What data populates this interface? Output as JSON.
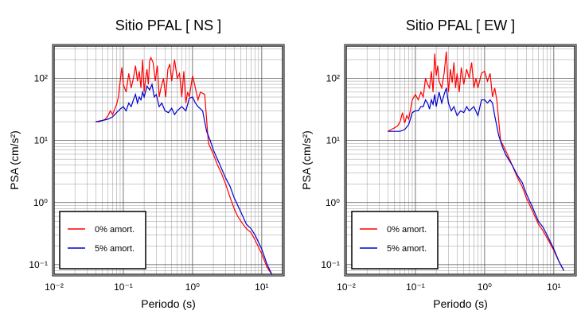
{
  "chart_data": [
    {
      "type": "line",
      "title": "Sitio PFAL [ NS ]",
      "xlabel": "Periodo (s)",
      "ylabel": "PSA (cm/s²)",
      "xscale": "log",
      "yscale": "log",
      "xlim": [
        0.01,
        20
      ],
      "ylim": [
        0.07,
        330
      ],
      "grid": true,
      "legend_position": "bottom-left",
      "x_ticks": [
        {
          "value": 0.01,
          "label": "10⁻²"
        },
        {
          "value": 0.1,
          "label": "10⁻¹"
        },
        {
          "value": 1,
          "label": "10⁰"
        },
        {
          "value": 10,
          "label": "10¹"
        }
      ],
      "y_ticks": [
        {
          "value": 0.1,
          "label": "10⁻¹"
        },
        {
          "value": 1,
          "label": "10⁰"
        },
        {
          "value": 10,
          "label": "10¹"
        },
        {
          "value": 100,
          "label": "10²"
        }
      ],
      "series": [
        {
          "name": "0% amort.",
          "color": "#ff0000",
          "x": [
            0.04,
            0.045,
            0.05,
            0.055,
            0.06,
            0.065,
            0.07,
            0.075,
            0.08,
            0.085,
            0.09,
            0.095,
            0.1,
            0.11,
            0.12,
            0.13,
            0.14,
            0.15,
            0.16,
            0.17,
            0.18,
            0.19,
            0.2,
            0.21,
            0.22,
            0.23,
            0.24,
            0.25,
            0.27,
            0.29,
            0.31,
            0.33,
            0.35,
            0.38,
            0.41,
            0.44,
            0.47,
            0.5,
            0.55,
            0.6,
            0.65,
            0.7,
            0.75,
            0.8,
            0.85,
            0.9,
            1.0,
            1.1,
            1.2,
            1.3,
            1.5,
            1.7,
            2.0,
            2.3,
            2.6,
            3.0,
            3.5,
            4.0,
            4.5,
            5,
            6,
            7,
            8,
            10,
            12,
            14
          ],
          "y": [
            20,
            20,
            21,
            22,
            25,
            30,
            26,
            32,
            38,
            50,
            90,
            150,
            80,
            60,
            120,
            70,
            100,
            160,
            90,
            130,
            70,
            200,
            60,
            100,
            140,
            80,
            190,
            215,
            180,
            90,
            160,
            50,
            70,
            100,
            50,
            140,
            170,
            90,
            200,
            100,
            120,
            50,
            130,
            40,
            60,
            50,
            110,
            70,
            45,
            60,
            55,
            9,
            6,
            4,
            3,
            2,
            1.2,
            0.8,
            0.6,
            0.5,
            0.38,
            0.33,
            0.25,
            0.15,
            0.09,
            0.07
          ]
        },
        {
          "name": "5% amort.",
          "color": "#0000cc",
          "x": [
            0.04,
            0.05,
            0.06,
            0.07,
            0.08,
            0.09,
            0.1,
            0.11,
            0.12,
            0.13,
            0.14,
            0.15,
            0.16,
            0.17,
            0.18,
            0.19,
            0.2,
            0.22,
            0.24,
            0.26,
            0.28,
            0.3,
            0.33,
            0.36,
            0.4,
            0.45,
            0.5,
            0.55,
            0.6,
            0.7,
            0.8,
            0.9,
            1.0,
            1.1,
            1.2,
            1.4,
            1.6,
            1.8,
            2.0,
            2.5,
            3.0,
            3.5,
            4.0,
            5,
            6,
            7,
            8,
            10,
            12,
            14
          ],
          "y": [
            20,
            21,
            22,
            24,
            28,
            32,
            35,
            30,
            40,
            35,
            45,
            55,
            40,
            50,
            45,
            60,
            50,
            75,
            65,
            80,
            50,
            55,
            35,
            40,
            30,
            28,
            33,
            26,
            30,
            35,
            30,
            48,
            50,
            40,
            35,
            30,
            14,
            10,
            7,
            4,
            2.5,
            1.8,
            1.2,
            0.7,
            0.45,
            0.38,
            0.3,
            0.18,
            0.1,
            0.07
          ]
        }
      ]
    },
    {
      "type": "line",
      "title": "Sitio PFAL [ EW ]",
      "xlabel": "Periodo (s)",
      "ylabel": "PSA (cm/s²)",
      "xscale": "log",
      "yscale": "log",
      "xlim": [
        0.01,
        20
      ],
      "ylim": [
        0.07,
        330
      ],
      "grid": true,
      "legend_position": "bottom-left",
      "x_ticks": [
        {
          "value": 0.01,
          "label": "10⁻²"
        },
        {
          "value": 0.1,
          "label": "10⁻¹"
        },
        {
          "value": 1,
          "label": "10⁰"
        },
        {
          "value": 10,
          "label": "10¹"
        }
      ],
      "y_ticks": [
        {
          "value": 0.1,
          "label": "10⁻¹"
        },
        {
          "value": 1,
          "label": "10⁰"
        },
        {
          "value": 10,
          "label": "10¹"
        },
        {
          "value": 100,
          "label": "10²"
        }
      ],
      "series": [
        {
          "name": "0% amort.",
          "color": "#ff0000",
          "x": [
            0.04,
            0.045,
            0.05,
            0.055,
            0.06,
            0.065,
            0.07,
            0.075,
            0.08,
            0.09,
            0.1,
            0.11,
            0.12,
            0.13,
            0.14,
            0.15,
            0.16,
            0.17,
            0.18,
            0.19,
            0.2,
            0.21,
            0.22,
            0.24,
            0.26,
            0.28,
            0.3,
            0.32,
            0.34,
            0.36,
            0.38,
            0.4,
            0.43,
            0.46,
            0.5,
            0.55,
            0.6,
            0.65,
            0.7,
            0.75,
            0.8,
            0.9,
            1.0,
            1.1,
            1.2,
            1.3,
            1.4,
            1.5,
            1.7,
            2.0,
            2.5,
            3.0,
            3.5,
            4.0,
            5,
            6,
            7,
            8,
            10,
            12,
            14
          ],
          "y": [
            14,
            15,
            16,
            17,
            20,
            28,
            19,
            25,
            22,
            45,
            55,
            45,
            60,
            50,
            100,
            80,
            70,
            130,
            60,
            250,
            110,
            160,
            90,
            70,
            120,
            270,
            60,
            140,
            85,
            180,
            70,
            120,
            60,
            150,
            80,
            140,
            100,
            180,
            70,
            100,
            70,
            120,
            130,
            90,
            120,
            50,
            70,
            45,
            10,
            7,
            4,
            2.5,
            1.8,
            1.2,
            0.7,
            0.45,
            0.35,
            0.27,
            0.17,
            0.11,
            0.08
          ]
        },
        {
          "name": "5% amort.",
          "color": "#0000cc",
          "x": [
            0.04,
            0.05,
            0.06,
            0.07,
            0.08,
            0.09,
            0.1,
            0.11,
            0.12,
            0.13,
            0.14,
            0.15,
            0.16,
            0.17,
            0.18,
            0.19,
            0.2,
            0.22,
            0.24,
            0.26,
            0.28,
            0.3,
            0.33,
            0.36,
            0.4,
            0.45,
            0.5,
            0.55,
            0.6,
            0.7,
            0.8,
            0.9,
            1.0,
            1.1,
            1.2,
            1.3,
            1.4,
            1.6,
            1.8,
            2.0,
            2.5,
            3.0,
            3.5,
            4.0,
            5,
            6,
            7,
            8,
            10,
            12,
            14
          ],
          "y": [
            14,
            14,
            14,
            15,
            18,
            28,
            30,
            30,
            35,
            35,
            45,
            40,
            32,
            45,
            38,
            55,
            35,
            60,
            40,
            55,
            70,
            40,
            30,
            35,
            25,
            30,
            28,
            35,
            30,
            35,
            25,
            45,
            45,
            40,
            45,
            40,
            25,
            12,
            8,
            6,
            4,
            2.7,
            2.1,
            1.4,
            0.8,
            0.5,
            0.4,
            0.3,
            0.18,
            0.11,
            0.08
          ]
        }
      ]
    }
  ]
}
